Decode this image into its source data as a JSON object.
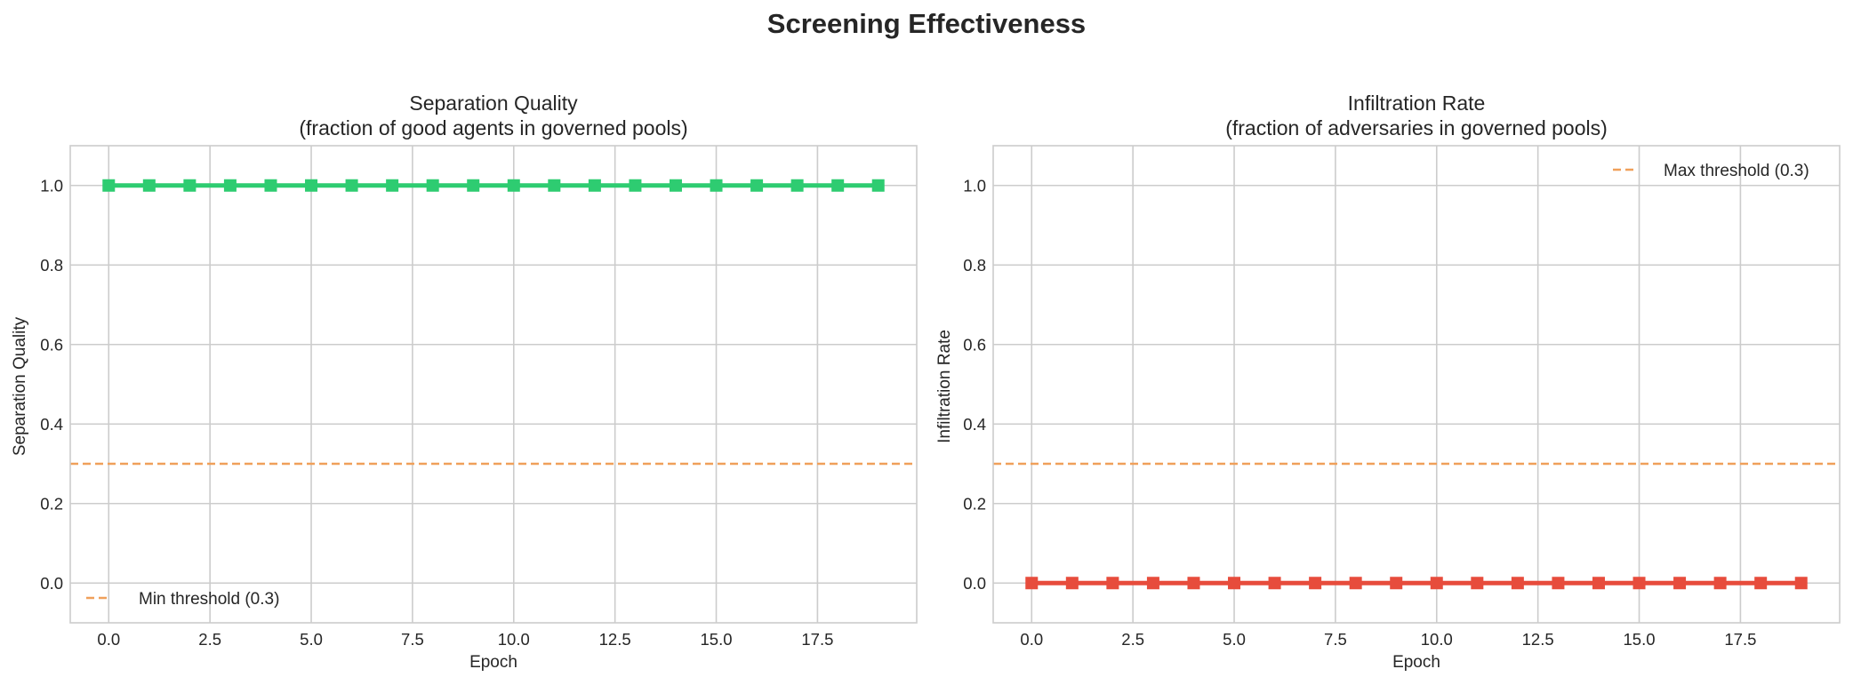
{
  "figure": {
    "title": "Screening Effectiveness"
  },
  "chart_data": [
    {
      "type": "line",
      "title_line1": "Separation Quality",
      "title_line2": "(fraction of good agents in governed pools)",
      "xlabel": "Epoch",
      "ylabel": "Separation Quality",
      "xlim": [
        -0.95,
        19.95
      ],
      "ylim": [
        -0.1,
        1.1
      ],
      "xticks": [
        0.0,
        2.5,
        5.0,
        7.5,
        10.0,
        12.5,
        15.0,
        17.5
      ],
      "xtick_labels": [
        "0.0",
        "2.5",
        "5.0",
        "7.5",
        "10.0",
        "12.5",
        "15.0",
        "17.5"
      ],
      "yticks": [
        0.0,
        0.2,
        0.4,
        0.6,
        0.8,
        1.0
      ],
      "ytick_labels": [
        "0.0",
        "0.2",
        "0.4",
        "0.6",
        "0.8",
        "1.0"
      ],
      "grid": true,
      "series": [
        {
          "color": "#2ecc71",
          "marker": "square",
          "x": [
            0,
            1,
            2,
            3,
            4,
            5,
            6,
            7,
            8,
            9,
            10,
            11,
            12,
            13,
            14,
            15,
            16,
            17,
            18,
            19
          ],
          "y": [
            1,
            1,
            1,
            1,
            1,
            1,
            1,
            1,
            1,
            1,
            1,
            1,
            1,
            1,
            1,
            1,
            1,
            1,
            1,
            1
          ]
        }
      ],
      "threshold": {
        "name": "Min threshold (0.3)",
        "value": 0.3,
        "color": "#f0a05a",
        "style": "dashed"
      },
      "legend_position": "lower-left"
    },
    {
      "type": "line",
      "title_line1": "Infiltration Rate",
      "title_line2": "(fraction of adversaries in governed pools)",
      "xlabel": "Epoch",
      "ylabel": "Infiltration Rate",
      "xlim": [
        -0.95,
        19.95
      ],
      "ylim": [
        -0.1,
        1.1
      ],
      "xticks": [
        0.0,
        2.5,
        5.0,
        7.5,
        10.0,
        12.5,
        15.0,
        17.5
      ],
      "xtick_labels": [
        "0.0",
        "2.5",
        "5.0",
        "7.5",
        "10.0",
        "12.5",
        "15.0",
        "17.5"
      ],
      "yticks": [
        0.0,
        0.2,
        0.4,
        0.6,
        0.8,
        1.0
      ],
      "ytick_labels": [
        "0.0",
        "0.2",
        "0.4",
        "0.6",
        "0.8",
        "1.0"
      ],
      "grid": true,
      "series": [
        {
          "color": "#e74c3c",
          "marker": "square",
          "x": [
            0,
            1,
            2,
            3,
            4,
            5,
            6,
            7,
            8,
            9,
            10,
            11,
            12,
            13,
            14,
            15,
            16,
            17,
            18,
            19
          ],
          "y": [
            0,
            0,
            0,
            0,
            0,
            0,
            0,
            0,
            0,
            0,
            0,
            0,
            0,
            0,
            0,
            0,
            0,
            0,
            0,
            0
          ]
        }
      ],
      "threshold": {
        "name": "Max threshold (0.3)",
        "value": 0.3,
        "color": "#f0a05a",
        "style": "dashed"
      },
      "legend_position": "upper-right"
    }
  ]
}
